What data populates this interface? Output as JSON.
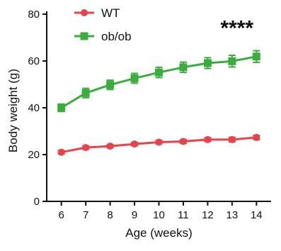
{
  "chart_data": {
    "type": "line",
    "title": "",
    "xlabel": "Age (weeks)",
    "ylabel": "Body weight (g)",
    "x": [
      6,
      7,
      8,
      9,
      10,
      11,
      12,
      13,
      14
    ],
    "xticks": [
      "6",
      "7",
      "8",
      "9",
      "10",
      "11",
      "12",
      "13",
      "14"
    ],
    "xlim": [
      5.4,
      14.6
    ],
    "ylim": [
      0,
      80
    ],
    "yticks": [
      "0",
      "20",
      "40",
      "60",
      "80"
    ],
    "grid": false,
    "legend_position": "top-left",
    "series": [
      {
        "name": "WT",
        "color": "#e8434a",
        "marker": "circle",
        "values": [
          21,
          23,
          23.6,
          24.5,
          25.3,
          25.6,
          26.4,
          26.4,
          27.3
        ],
        "error": [
          0.7,
          0.7,
          0.7,
          0.7,
          0.8,
          0.8,
          0.8,
          1.0,
          0.9
        ]
      },
      {
        "name": "ob/ob",
        "color": "#3aae3c",
        "marker": "square",
        "values": [
          40,
          46.3,
          49.8,
          52.6,
          55.1,
          57.3,
          59.1,
          59.9,
          61.9
        ],
        "error": [
          1.6,
          2.0,
          2.0,
          2.1,
          2.2,
          2.2,
          2.3,
          2.5,
          2.5
        ]
      }
    ],
    "annotations": [
      {
        "text": "****",
        "x": 13.2,
        "y": 71
      }
    ]
  }
}
